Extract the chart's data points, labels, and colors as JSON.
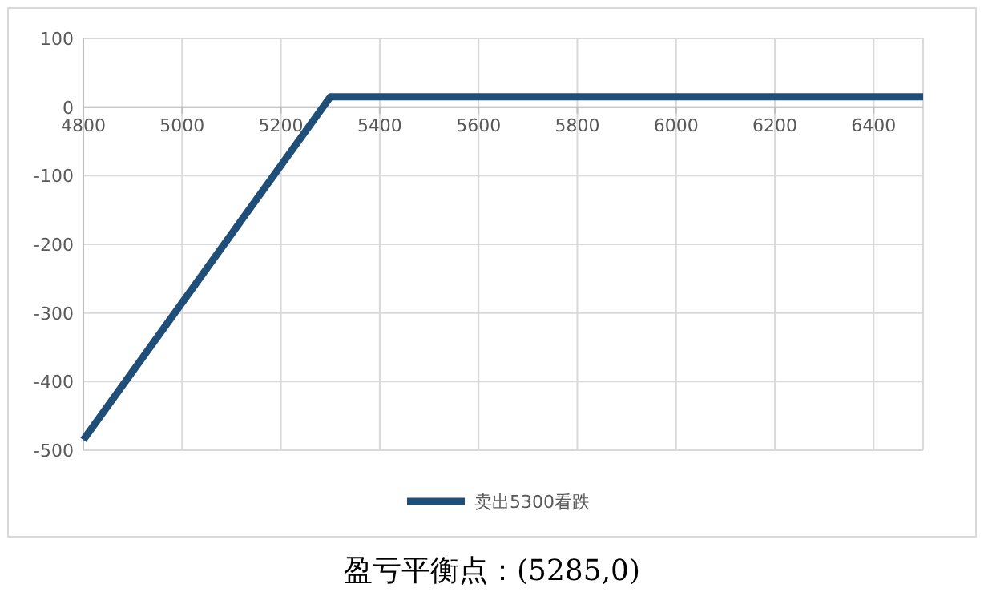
{
  "chart_data": {
    "type": "line",
    "x": [
      4800,
      5300,
      6500
    ],
    "series": [
      {
        "name": "卖出5300看跌",
        "color": "#1f4e79",
        "values": [
          -485,
          15,
          15
        ]
      }
    ],
    "xlim": [
      4800,
      6500
    ],
    "xticks": [
      4800,
      5000,
      5200,
      5400,
      5600,
      5800,
      6000,
      6200,
      6400
    ],
    "ylim": [
      -500,
      100
    ],
    "yticks": [
      -500,
      -400,
      -300,
      -200,
      -100,
      0,
      100
    ],
    "grid": true,
    "legend": "bottom",
    "marker": "none",
    "line_style": "solid",
    "annotations": [
      "盈亏平衡点：(5285,0)"
    ]
  }
}
